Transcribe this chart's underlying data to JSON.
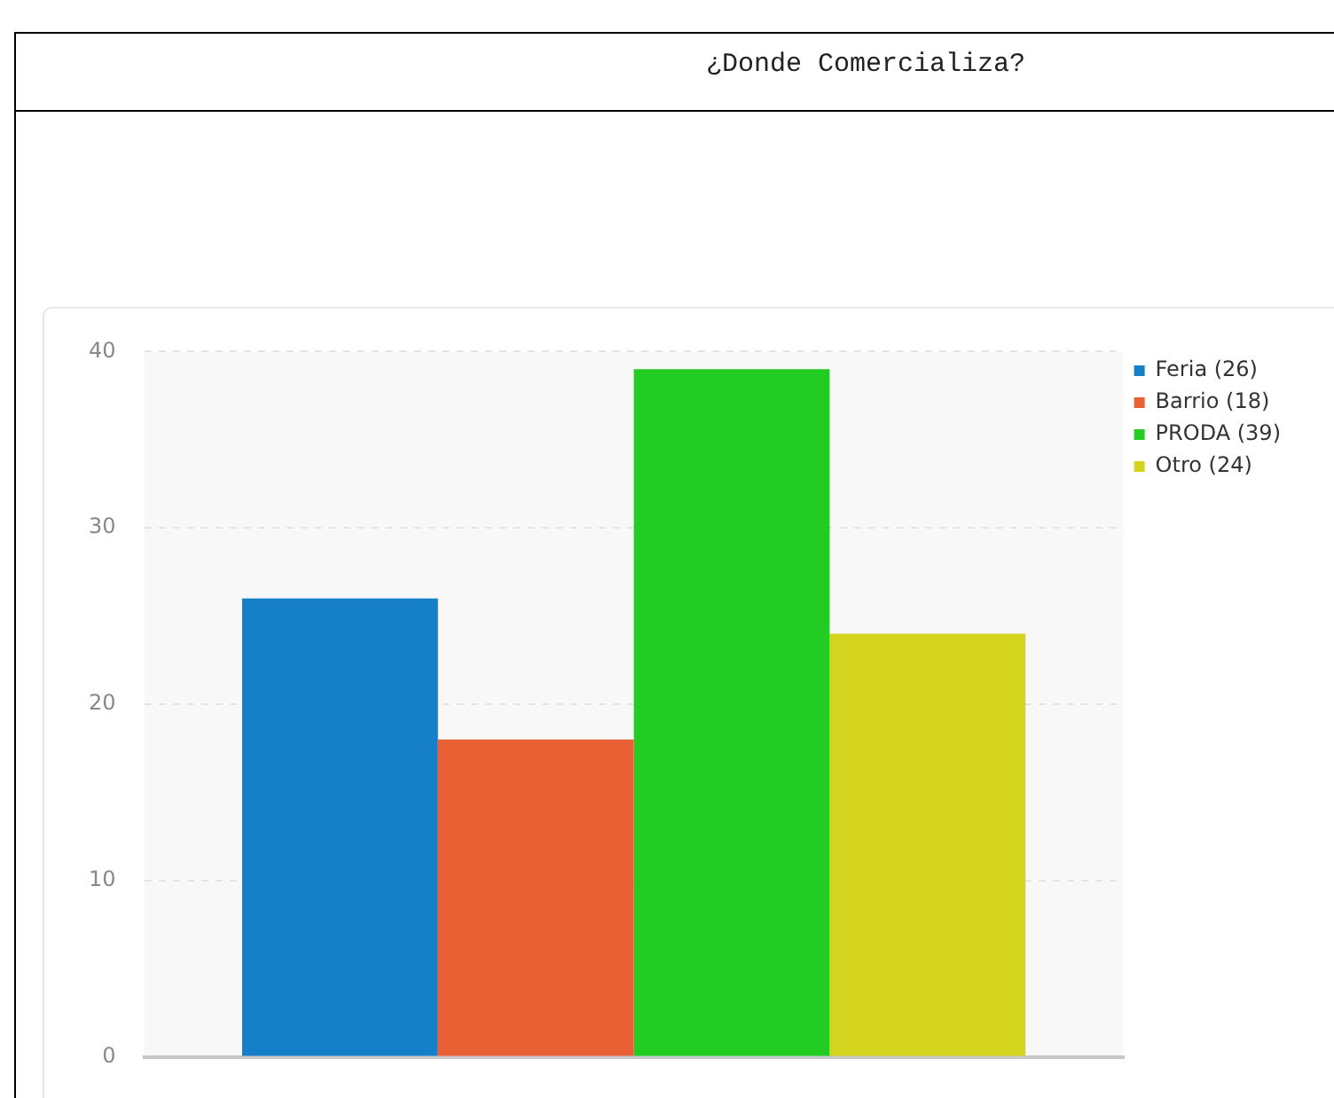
{
  "chart_data": {
    "type": "bar",
    "title": "¿Donde Comercializa?",
    "categories": [
      null
    ],
    "series": [
      {
        "name": "Feria (26)",
        "color": "#1580c8",
        "values": [
          26
        ]
      },
      {
        "name": "Barrio (18)",
        "color": "#e86033",
        "values": [
          18
        ]
      },
      {
        "name": "PRODA (39)",
        "color": "#22cc22",
        "values": [
          39
        ]
      },
      {
        "name": "Otro (24)",
        "color": "#d4d41f",
        "values": [
          24
        ]
      }
    ],
    "ylim": [
      0,
      40
    ],
    "yticks": [
      0,
      10,
      20,
      30,
      40
    ],
    "grid": "y",
    "legend": "top right",
    "tick_labels": "y"
  }
}
